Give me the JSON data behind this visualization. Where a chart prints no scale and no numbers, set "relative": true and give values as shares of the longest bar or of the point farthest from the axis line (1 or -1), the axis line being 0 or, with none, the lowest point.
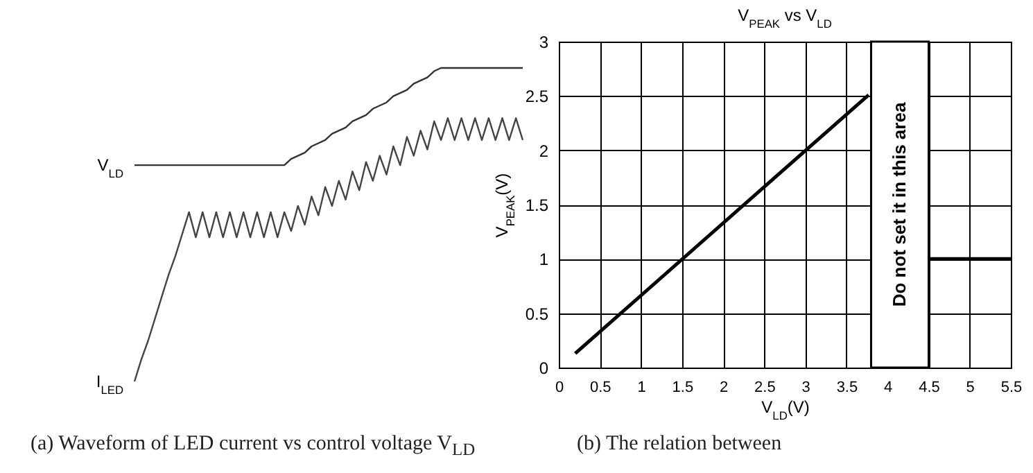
{
  "chart_data": [
    {
      "type": "line",
      "relative": true,
      "categories": [
        null,
        null,
        null,
        null,
        null,
        null,
        null,
        null,
        null,
        null,
        null,
        null,
        null,
        null,
        null,
        null,
        null,
        null,
        null,
        null,
        null,
        null,
        null,
        null,
        null,
        null,
        null,
        null,
        null,
        null,
        null,
        null,
        null,
        null,
        null,
        null,
        null,
        null,
        null,
        null,
        null,
        null,
        null,
        null,
        null,
        null,
        null,
        null,
        null,
        null,
        null,
        null,
        null,
        null,
        null,
        null,
        null,
        null
      ],
      "series": [
        {
          "name": "V$_{LD}$",
          "color": "#333333",
          "values": [
            0.69,
            0.69,
            0.69,
            0.69,
            0.69,
            0.69,
            0.69,
            0.69,
            0.69,
            0.69,
            0.69,
            0.69,
            0.69,
            0.69,
            0.69,
            0.69,
            0.69,
            0.69,
            0.69,
            0.69,
            0.69,
            0.69,
            0.69,
            0.71,
            0.72,
            0.73,
            0.75,
            0.76,
            0.77,
            0.79,
            0.8,
            0.81,
            0.83,
            0.84,
            0.85,
            0.87,
            0.88,
            0.89,
            0.91,
            0.92,
            0.93,
            0.95,
            0.96,
            0.97,
            0.99,
            1,
            1,
            1,
            1,
            1,
            1,
            1,
            1,
            1,
            1,
            1,
            1,
            1
          ]
        },
        {
          "name": "I$_{LED}$",
          "color": "#444444",
          "values": [
            0,
            0.07,
            0.13,
            0.2,
            0.27,
            0.34,
            0.4,
            0.47,
            0.54,
            0.46,
            0.54,
            0.46,
            0.54,
            0.46,
            0.54,
            0.46,
            0.54,
            0.46,
            0.54,
            0.46,
            0.54,
            0.46,
            0.54,
            0.48,
            0.56,
            0.5,
            0.59,
            0.53,
            0.62,
            0.56,
            0.64,
            0.58,
            0.67,
            0.61,
            0.7,
            0.64,
            0.72,
            0.66,
            0.75,
            0.69,
            0.78,
            0.72,
            0.8,
            0.74,
            0.83,
            0.77,
            0.84,
            0.77,
            0.84,
            0.77,
            0.84,
            0.77,
            0.84,
            0.77,
            0.84,
            0.77,
            0.84,
            0.77
          ]
        }
      ],
      "annotations": [
        "(a) Waveform of LED current vs control voltage V$_{LD}$"
      ]
    },
    {
      "type": "line",
      "title": "V$_{PEAK}$ vs V$_{LD}$",
      "xlabel": "V$_{LD}$(V)",
      "ylabel": "V$_{PEAK}$(V)",
      "xlim": [
        0,
        5.5
      ],
      "ylim": [
        0,
        3
      ],
      "xticks": [
        0,
        0.5,
        1,
        1.5,
        2,
        2.5,
        3,
        3.5,
        4,
        4.5,
        5,
        5.5
      ],
      "yticks": [
        0,
        0.5,
        1,
        1.5,
        2,
        2.5,
        3
      ],
      "grid": true,
      "series": [
        {
          "color": "#000000",
          "x": [
            0.2,
            3.77
          ],
          "values": [
            0.13,
            2.51
          ]
        },
        {
          "color": "#000000",
          "x": [
            4.5,
            5.5
          ],
          "values": [
            1,
            1
          ]
        }
      ],
      "bands": [
        {
          "axis": "x",
          "from": 3.8,
          "to": 4.5,
          "label": "Do not set it in this area",
          "color": "#ffffff"
        }
      ],
      "annotations": [
        "(b) The relation between"
      ]
    }
  ]
}
